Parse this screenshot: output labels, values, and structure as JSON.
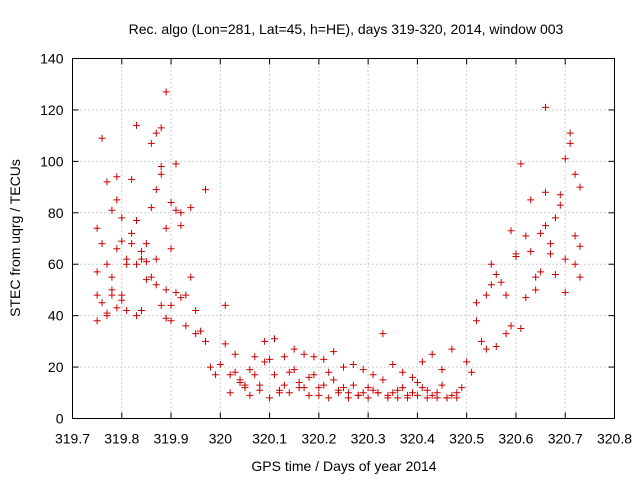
{
  "chart_data": {
    "type": "scatter",
    "title": "Rec. algo (Lon=281, Lat=45, h=HE), days 319-320, 2014, window 003",
    "xlabel": "GPS time / Days of year 2014",
    "ylabel": "STEC from uqrg / TECUs",
    "xlim": [
      319.7,
      320.8
    ],
    "ylim": [
      0,
      140
    ],
    "xticks": [
      319.7,
      319.8,
      319.9,
      320,
      320.1,
      320.2,
      320.3,
      320.4,
      320.5,
      320.6,
      320.7,
      320.8
    ],
    "xtick_labels": [
      "319.7",
      "319.8",
      "319.9",
      "320",
      "320.1",
      "320.2",
      "320.3",
      "320.4",
      "320.5",
      "320.6",
      "320.7",
      "320.8"
    ],
    "yticks": [
      0,
      20,
      40,
      60,
      80,
      100,
      120,
      140
    ],
    "ytick_labels": [
      "0",
      "20",
      "40",
      "60",
      "80",
      "100",
      "120",
      "140"
    ],
    "grid": true,
    "marker": "plus",
    "color": "#cc0000",
    "series": [
      {
        "x": [
          319.75,
          319.75,
          319.75,
          319.75,
          319.76,
          319.76,
          319.77,
          319.77,
          319.77,
          319.78,
          319.78,
          319.78,
          319.79,
          319.79,
          319.79,
          319.8,
          319.8,
          319.8,
          319.81,
          319.81,
          319.82,
          319.82,
          319.83,
          319.83,
          319.83,
          319.84,
          319.84,
          319.85,
          319.85,
          319.86,
          319.86,
          319.87,
          319.87,
          319.87,
          319.88,
          319.88,
          319.88,
          319.89,
          319.89,
          319.89,
          319.9,
          319.9,
          319.9,
          319.91,
          319.91,
          319.92,
          319.92,
          319.93,
          319.94,
          319.95,
          319.96,
          319.97,
          319.98,
          319.99,
          319.76,
          319.79,
          319.82,
          319.85,
          319.88,
          319.91,
          319.94,
          319.97,
          319.8,
          319.86,
          319.92,
          319.78,
          319.84,
          319.9,
          319.77,
          319.81,
          319.87,
          319.93,
          319.83,
          319.89,
          319.95,
          320,
          320.01,
          320.02,
          320.03,
          320.04,
          320.05,
          320.06,
          320.07,
          320.08,
          320.09,
          320.1,
          320.11,
          320.12,
          320.13,
          320.14,
          320.15,
          320.16,
          320.17,
          320.18,
          320.19,
          320.2,
          320.21,
          320.22,
          320.23,
          320.24,
          320.25,
          320.26,
          320.27,
          320.28,
          320.29,
          320.3,
          320.31,
          320.32,
          320.33,
          320.34,
          320.35,
          320.36,
          320.37,
          320.38,
          320.39,
          320.4,
          320.41,
          320.42,
          320.43,
          320.44,
          320.45,
          320.46,
          320.47,
          320.48,
          320.49,
          320.01,
          320.03,
          320.05,
          320.07,
          320.09,
          320.11,
          320.13,
          320.15,
          320.17,
          320.19,
          320.21,
          320.23,
          320.25,
          320.27,
          320.29,
          320.31,
          320.33,
          320.35,
          320.37,
          320.39,
          320.41,
          320.43,
          320.45,
          320.47,
          320.02,
          320.06,
          320.1,
          320.14,
          320.18,
          320.22,
          320.26,
          320.3,
          320.34,
          320.38,
          320.42,
          320.46,
          320.04,
          320.08,
          320.12,
          320.16,
          320.2,
          320.24,
          320.28,
          320.32,
          320.36,
          320.4,
          320.44,
          320.48,
          320.5,
          320.51,
          320.52,
          320.53,
          320.54,
          320.55,
          320.56,
          320.57,
          320.58,
          320.59,
          320.6,
          320.61,
          320.62,
          320.63,
          320.64,
          320.65,
          320.66,
          320.67,
          320.68,
          320.69,
          320.7,
          320.71,
          320.72,
          320.73,
          320.52,
          320.55,
          320.58,
          320.61,
          320.64,
          320.67,
          320.7,
          320.73,
          320.56,
          320.62,
          320.68,
          320.72,
          320.6,
          320.66,
          320.71,
          320.69,
          320.72,
          320.73,
          320.63,
          320.65,
          320.59,
          320.7,
          320.54,
          320.66
        ],
        "y": [
          74,
          57,
          48,
          38,
          68,
          45,
          92,
          60,
          41,
          81,
          55,
          50,
          94,
          66,
          43,
          78,
          69,
          46,
          62,
          42,
          93,
          72,
          114,
          77,
          60,
          65,
          42,
          68,
          61,
          107,
          82,
          111,
          89,
          52,
          98,
          113,
          44,
          127,
          74,
          39,
          84,
          66,
          38,
          81,
          49,
          75,
          47,
          36,
          55,
          42,
          34,
          30,
          20,
          17,
          109,
          85,
          68,
          54,
          95,
          99,
          82,
          89,
          48,
          55,
          80,
          48,
          62,
          44,
          40,
          60,
          62,
          48,
          40,
          50,
          33,
          21,
          44,
          17,
          25,
          14,
          12,
          19,
          17,
          13,
          22,
          23,
          17,
          11,
          13,
          18,
          19,
          14,
          12,
          16,
          17,
          12,
          13,
          18,
          15,
          11,
          12,
          10,
          13,
          9,
          10,
          12,
          11,
          10,
          15,
          9,
          10,
          11,
          12,
          9,
          10,
          14,
          12,
          11,
          9,
          10,
          13,
          8,
          9,
          10,
          12,
          29,
          18,
          13,
          24,
          30,
          31,
          24,
          27,
          25,
          24,
          23,
          26,
          20,
          21,
          19,
          17,
          33,
          21,
          18,
          16,
          22,
          25,
          19,
          27,
          10,
          9,
          8,
          10,
          9,
          8,
          8,
          8,
          8,
          8,
          8,
          8,
          15,
          11,
          10,
          12,
          9,
          10,
          9,
          10,
          8,
          9,
          8,
          8,
          22,
          18,
          45,
          30,
          48,
          52,
          56,
          53,
          48,
          36,
          63,
          99,
          71,
          85,
          55,
          72,
          88,
          64,
          78,
          83,
          101,
          111,
          71,
          90,
          38,
          60,
          33,
          35,
          50,
          68,
          62,
          55,
          28,
          47,
          56,
          95,
          64,
          75,
          107,
          87,
          60,
          67,
          65,
          57,
          73,
          49,
          27,
          121
        ]
      }
    ]
  }
}
